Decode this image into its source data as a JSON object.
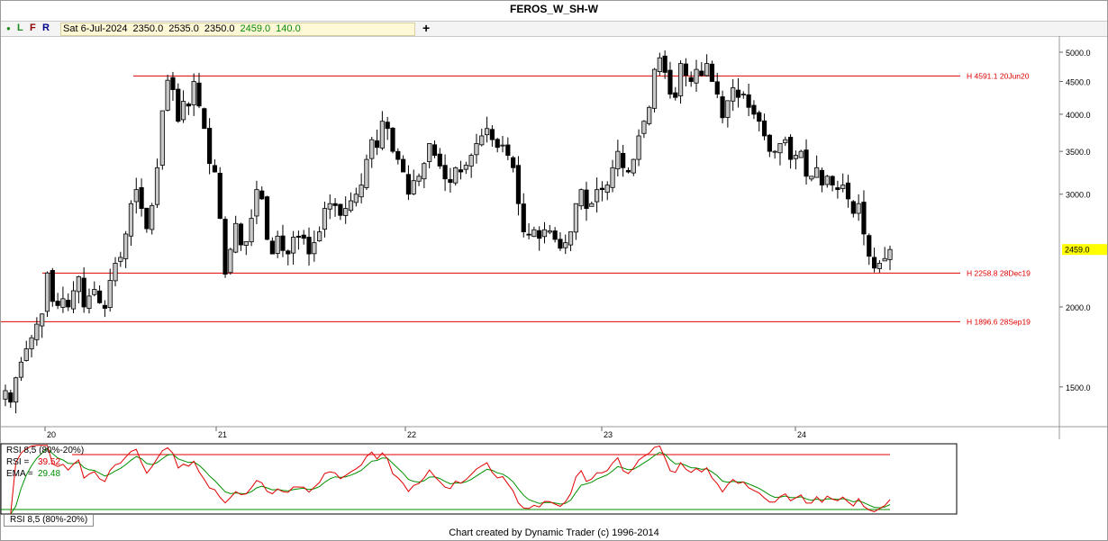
{
  "title": "FEROS_W_SH-W",
  "toolbar": {
    "btn_dot": "●",
    "btn_l": "L",
    "btn_f": "F",
    "btn_r": "R",
    "date": "Sat 6-Jul-2024",
    "open": "2350.0",
    "high": "2535.0",
    "low": "2350.0",
    "close": "2459.0",
    "change": "140.0",
    "add": "+"
  },
  "footer": "Chart created by Dynamic Trader  (c) 1996-2014",
  "tab_label": "RSI 8,5 (80%-20%)",
  "chart_data": [
    {
      "type": "candlestick",
      "scale": "log",
      "ylim": [
        1300,
        5300
      ],
      "y_ticks": [
        "5000.0",
        "4500.0",
        "4000.0",
        "3500.0",
        "3000.0",
        "2000.0",
        "1500.0"
      ],
      "x_ticks": [
        "20",
        "21",
        "22",
        "23",
        "24"
      ],
      "last_price_label": "2459.0",
      "levels": [
        {
          "value": 4591.1,
          "label": "H 4591.1 20Jun20",
          "color": "#e00000"
        },
        {
          "value": 2258.8,
          "label": "H 2258.8 28Dec19",
          "color": "#e00000"
        },
        {
          "value": 1896.6,
          "label": "H 1896.6 28Sep19",
          "color": "#e00000"
        }
      ],
      "series_close": [
        1480,
        1420,
        1550,
        1640,
        1720,
        1790,
        1880,
        1950,
        2260,
        2040,
        2010,
        2060,
        2000,
        2120,
        2230,
        2000,
        2080,
        2130,
        2030,
        1990,
        2200,
        2340,
        2390,
        2600,
        2900,
        3050,
        2850,
        2650,
        2880,
        3300,
        4050,
        4520,
        4370,
        3900,
        4190,
        4120,
        4500,
        4120,
        3800,
        3350,
        3250,
        2750,
        2250,
        2460,
        2700,
        2500,
        2530,
        2750,
        3050,
        2950,
        2550,
        2420,
        2580,
        2450,
        2420,
        2570,
        2570,
        2560,
        2420,
        2520,
        2620,
        2850,
        2900,
        2880,
        2780,
        2850,
        2930,
        3000,
        3100,
        3400,
        3650,
        3550,
        3900,
        3800,
        3500,
        3400,
        3250,
        3000,
        3150,
        3200,
        3350,
        3600,
        3450,
        3320,
        3170,
        3130,
        3300,
        3250,
        3330,
        3450,
        3600,
        3700,
        3800,
        3650,
        3550,
        3580,
        3450,
        3300,
        2900,
        2620,
        2590,
        2640,
        2560,
        2640,
        2630,
        2550,
        2470,
        2520,
        2620,
        2900,
        3050,
        2850,
        2900,
        3050,
        3050,
        3100,
        3300,
        3500,
        3300,
        3250,
        3400,
        3700,
        3900,
        4100,
        4700,
        4900,
        4650,
        4300,
        4250,
        4800,
        4600,
        4500,
        4700,
        4600,
        4800,
        4500,
        4300,
        3950,
        4200,
        4400,
        4250,
        4300,
        4100,
        4000,
        3900,
        3700,
        3500,
        3500,
        3600,
        3650,
        3400,
        3450,
        3500,
        3200,
        3200,
        3300,
        3100,
        3200,
        3100,
        3050,
        3100,
        2950,
        2800,
        2900,
        2600,
        2400,
        2300,
        2340,
        2380,
        2459
      ]
    },
    {
      "type": "line",
      "title": "RSI 8,5 (80%-20%)",
      "ylim": [
        0,
        100
      ],
      "levels": [
        80,
        20
      ],
      "series": [
        {
          "name": "RSI",
          "value": "39.52",
          "color": "#e00000"
        },
        {
          "name": "EMA",
          "value": "29.48",
          "color": "#009000"
        }
      ]
    }
  ]
}
